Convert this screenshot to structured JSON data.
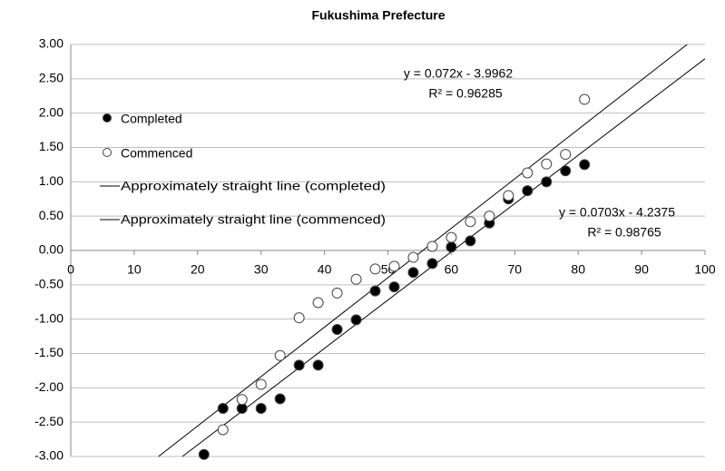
{
  "chart_data": {
    "type": "scatter",
    "title": "Fukushima Prefecture",
    "xlim": [
      0,
      100
    ],
    "xticks": [
      0,
      10,
      20,
      30,
      40,
      50,
      60,
      70,
      80,
      90,
      100
    ],
    "ylim": [
      -3,
      3
    ],
    "yticks": [
      {
        "value": 3,
        "label": "3.00"
      },
      {
        "value": 2.5,
        "label": "2.50"
      },
      {
        "value": 2,
        "label": "2.00"
      },
      {
        "value": 1.5,
        "label": "1.50"
      },
      {
        "value": 1,
        "label": "1.00"
      },
      {
        "value": 0.5,
        "label": "0.50"
      },
      {
        "value": 0,
        "label": "0.00"
      },
      {
        "value": -0.5,
        "label": "-0.50"
      },
      {
        "value": -1,
        "label": "-1.00"
      },
      {
        "value": -1.5,
        "label": "-1.50"
      },
      {
        "value": -2,
        "label": "-2.00"
      },
      {
        "value": -2.5,
        "label": "-2.50"
      },
      {
        "value": -3,
        "label": "-3.00"
      }
    ],
    "grid": true,
    "series": [
      {
        "name": "Completed",
        "color": "#000000",
        "x": [
          21,
          24,
          27,
          30,
          33,
          36,
          39,
          42,
          45,
          48,
          51,
          54,
          57,
          60,
          63,
          66,
          69,
          72,
          75,
          78,
          81
        ],
        "values": [
          -2.97,
          -2.3,
          -2.3,
          -2.3,
          -2.16,
          -1.67,
          -1.67,
          -1.15,
          -1.01,
          -0.59,
          -0.53,
          -0.32,
          -0.19,
          0.05,
          0.14,
          0.4,
          0.75,
          0.87,
          1.0,
          1.16,
          1.25
        ]
      },
      {
        "name": "Commenced",
        "color": "#ffffff",
        "x": [
          24,
          27,
          30,
          33,
          36,
          39,
          42,
          45,
          48,
          51,
          54,
          57,
          60,
          63,
          66,
          69,
          72,
          75,
          78,
          81
        ],
        "values": [
          -2.61,
          -2.17,
          -1.95,
          -1.53,
          -0.98,
          -0.76,
          -0.62,
          -0.42,
          -0.27,
          -0.23,
          -0.1,
          0.06,
          0.19,
          0.42,
          0.5,
          0.8,
          1.13,
          1.26,
          1.4,
          2.2
        ]
      }
    ],
    "trendlines": [
      {
        "name": "Approximately straight line (completed)",
        "color": "#000000",
        "slope": 0.0703,
        "intercept": -4.2375,
        "equation": "y = 0.0703x - 4.2375",
        "r_squared": "R² = 0.98765"
      },
      {
        "name": "Approximately straight line (commenced)",
        "color": "#000000",
        "slope": 0.072,
        "intercept": -3.9962,
        "equation": "y = 0.072x - 3.9962",
        "r_squared": "R² = 0.96285"
      }
    ]
  }
}
